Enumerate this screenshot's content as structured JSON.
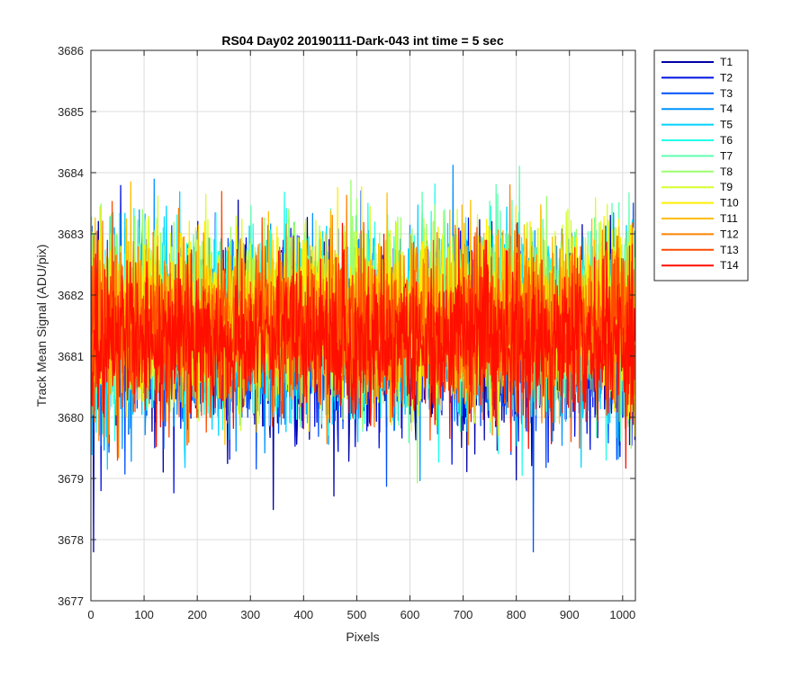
{
  "chart_data": {
    "type": "line",
    "title": "RS04 Day02 20190111-Dark-043 int time = 5 sec",
    "xlabel": "Pixels",
    "ylabel": "Track Mean Signal (ADU/pix)",
    "xlim": [
      0,
      1024
    ],
    "ylim": [
      3677,
      3686
    ],
    "xticks": [
      "0",
      "100",
      "200",
      "300",
      "400",
      "500",
      "600",
      "700",
      "800",
      "900",
      "1000"
    ],
    "yticks": [
      "3677",
      "3678",
      "3679",
      "3680",
      "3681",
      "3682",
      "3683",
      "3684",
      "3685",
      "3686"
    ],
    "grid": true,
    "legend_position": "outside-top-right",
    "series": [
      {
        "name": "T1",
        "color": "#0000a8",
        "mean": 3681.2,
        "spread": 1.35,
        "n": 1024
      },
      {
        "name": "T2",
        "color": "#0010e0",
        "mean": 3681.3,
        "spread": 1.35,
        "n": 1024
      },
      {
        "name": "T3",
        "color": "#0050ff",
        "mean": 3681.3,
        "spread": 1.3,
        "n": 1024
      },
      {
        "name": "T4",
        "color": "#0094ff",
        "mean": 3681.4,
        "spread": 1.3,
        "n": 1024
      },
      {
        "name": "T5",
        "color": "#00d4ff",
        "mean": 3681.5,
        "spread": 1.3,
        "n": 1024
      },
      {
        "name": "T6",
        "color": "#23ffe8",
        "mean": 3681.6,
        "spread": 1.3,
        "n": 1024
      },
      {
        "name": "T7",
        "color": "#5fffb0",
        "mean": 3681.6,
        "spread": 1.25,
        "n": 1024
      },
      {
        "name": "T8",
        "color": "#9cff6e",
        "mean": 3681.7,
        "spread": 1.25,
        "n": 1024
      },
      {
        "name": "T9",
        "color": "#d6ff2b",
        "mean": 3681.7,
        "spread": 1.25,
        "n": 1024
      },
      {
        "name": "T10",
        "color": "#ffee00",
        "mean": 3681.7,
        "spread": 1.2,
        "n": 1024
      },
      {
        "name": "T11",
        "color": "#ffbe00",
        "mean": 3681.6,
        "spread": 1.2,
        "n": 1024
      },
      {
        "name": "T12",
        "color": "#ff8200",
        "mean": 3681.5,
        "spread": 1.2,
        "n": 1024
      },
      {
        "name": "T13",
        "color": "#ff4a00",
        "mean": 3681.4,
        "spread": 1.15,
        "n": 1024
      },
      {
        "name": "T14",
        "color": "#ff0f00",
        "mean": 3681.3,
        "spread": 1.1,
        "n": 1024
      }
    ]
  }
}
